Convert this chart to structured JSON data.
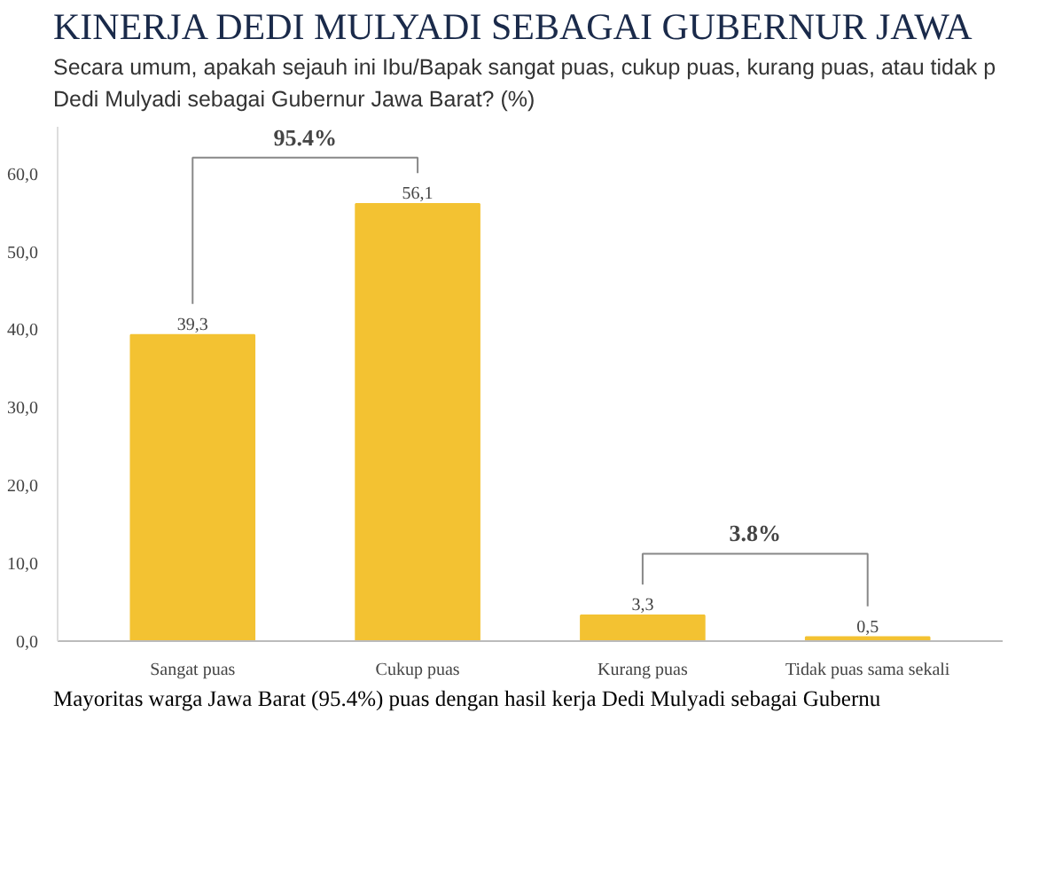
{
  "chart_data": {
    "type": "bar",
    "title": "KINERJA DEDI MULYADI SEBAGAI GUBERNUR JAWA",
    "subtitle": "Secara umum, apakah sejauh ini Ibu/Bapak sangat puas, cukup puas, kurang puas, atau tidak p Dedi Mulyadi sebagai Gubernur Jawa Barat?  (%)",
    "categories": [
      "Sangat puas",
      "Cukup puas",
      "Kurang puas",
      "Tidak puas sama sekali"
    ],
    "values": [
      39.3,
      56.1,
      3.3,
      0.5
    ],
    "value_labels": [
      "39,3",
      "56,1",
      "3,3",
      "0,5"
    ],
    "color": "#f3c232",
    "ylim": [
      0,
      66
    ],
    "yticks": [
      {
        "value": 0,
        "label": "0,0"
      },
      {
        "value": 10,
        "label": "10,0"
      },
      {
        "value": 20,
        "label": "20,0"
      },
      {
        "value": 30,
        "label": "30,0"
      },
      {
        "value": 40,
        "label": "40,0"
      },
      {
        "value": 50,
        "label": "50,0"
      },
      {
        "value": 60,
        "label": "60,0"
      }
    ],
    "annotations": [
      "95.4%",
      "3.8%",
      "Mayoritas warga Jawa Barat (95.4%) puas dengan hasil kerja Dedi Mulyadi sebagai Gubernu"
    ]
  }
}
